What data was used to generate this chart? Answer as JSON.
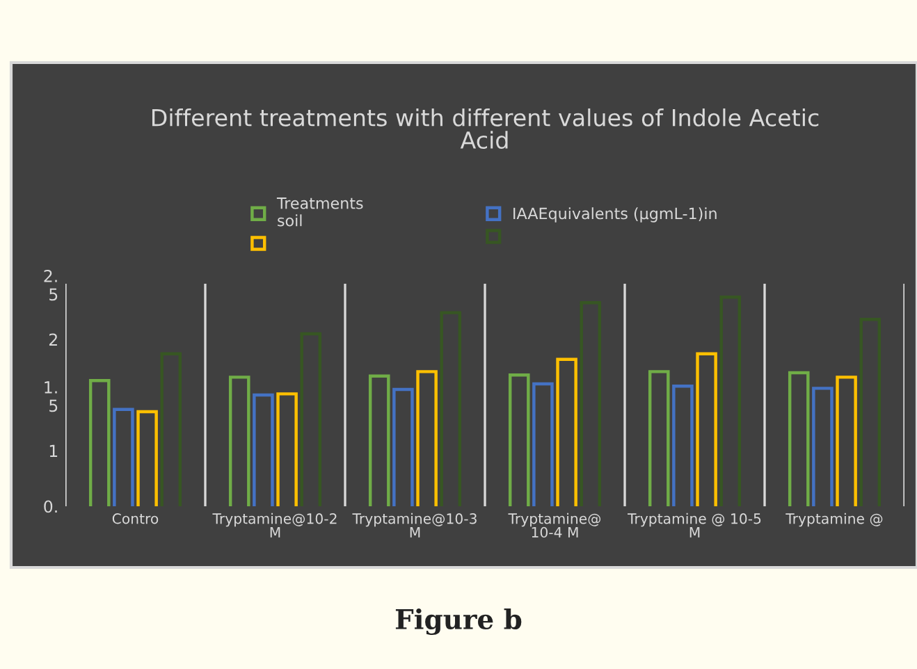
{
  "chart_data": {
    "type": "bar",
    "title": "Different treatments with different values of Indole Acetic\nAcid",
    "categories": [
      "Contro",
      "Tryptamine@10-2\nM",
      "Tryptamine@10-3\nM",
      "Tryptamine@\n10-4 M",
      "Tryptamine @ 10-5\nM",
      "Tryptamine @"
    ],
    "series": [
      {
        "name": "Treatments\nsoil",
        "color": "#70ad47",
        "values": [
          1.63,
          1.66,
          1.67,
          1.68,
          1.71,
          1.7
        ]
      },
      {
        "name": "IAAEquivalents (µgmL-1)in",
        "color": "#4472c4",
        "values": [
          1.37,
          1.5,
          1.55,
          1.6,
          1.58,
          1.56
        ]
      },
      {
        "color": "#ffc000",
        "values": [
          1.35,
          1.51,
          1.71,
          1.82,
          1.87,
          1.66
        ]
      },
      {
        "color": "#375623",
        "values": [
          1.87,
          2.05,
          2.24,
          2.33,
          2.38,
          2.18
        ]
      }
    ],
    "ylim": [
      0.5,
      2.5
    ],
    "yticks": [
      {
        "value": 0.5,
        "label": "0."
      },
      1,
      {
        "value": 1.5,
        "label": "1.\n5"
      },
      2,
      {
        "value": 2.5,
        "label": "2.\n5"
      }
    ],
    "grid": "x",
    "legend": "top",
    "annotations": [
      "Figure b"
    ]
  }
}
